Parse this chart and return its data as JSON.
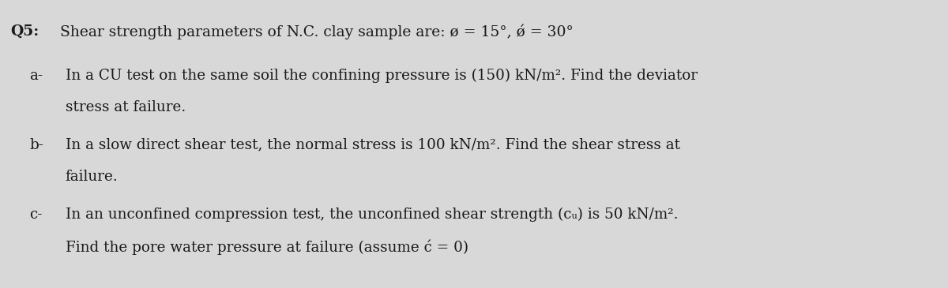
{
  "background_color": "#d8d8d8",
  "text_color": "#1a1a1a",
  "title_line": "Q5: Shear strength parameters of N.C. clay sample are: ø = 15°, ǿ = 30°",
  "lines": [
    "a-  In a CU test on the same soil the confining pressure is (150) kN/m². Find the deviator",
    "     stress at failure.",
    "b-  In a slow direct shear test, the normal stress is 100 kN/m². Find the shear stress at",
    "     failure.",
    "c-  In an unconfined compression test, the unconfined shear strength (cᵤ) is 50 kN/m².",
    "     Find the pore water pressure at failure (assume ć = 0)"
  ],
  "figsize": [
    12.0,
    3.65
  ],
  "dpi": 100
}
